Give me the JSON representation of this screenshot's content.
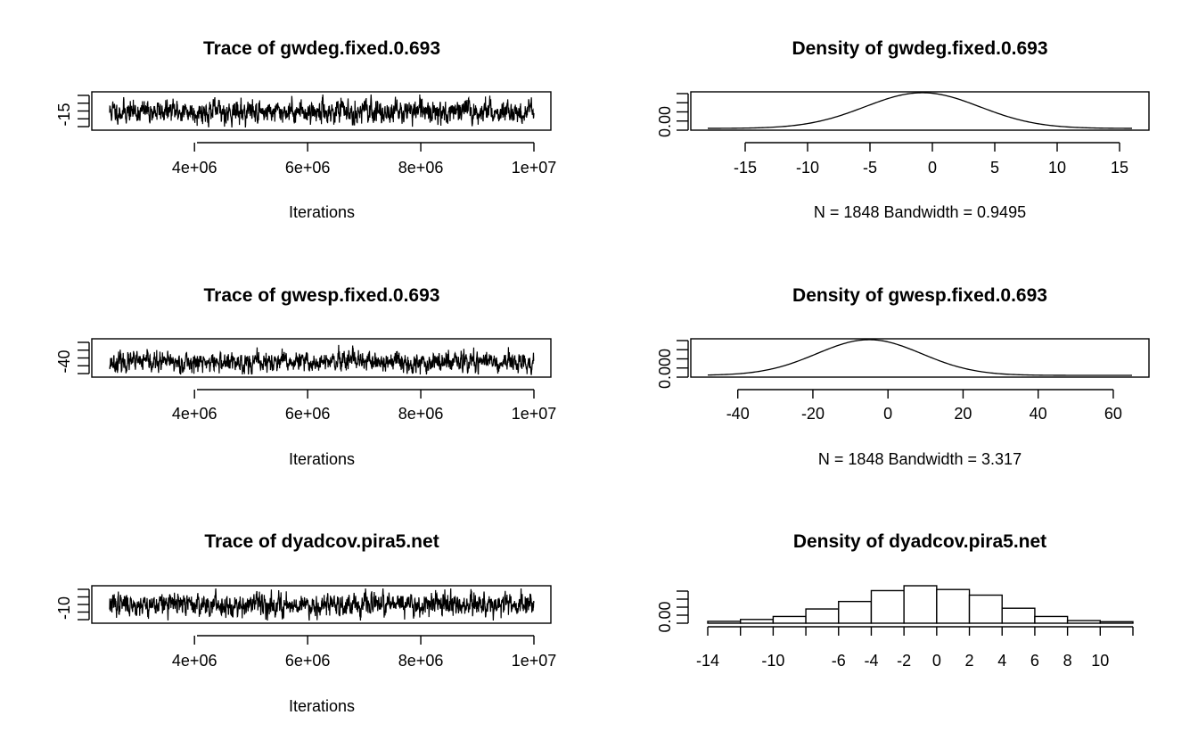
{
  "chart_data": [
    {
      "type": "line",
      "title": "Trace of gwdeg.fixed.0.693",
      "xlabel": "Iterations",
      "ylabel": "",
      "x_ticks": [
        "4e+06",
        "6e+06",
        "8e+06",
        "1e+07"
      ],
      "x_tick_values": [
        4000000,
        6000000,
        8000000,
        10000000
      ],
      "y_ticks": [
        "-15"
      ],
      "xlim": [
        2500000,
        10000000
      ],
      "ylim": [
        -17,
        16
      ],
      "series": [
        {
          "n": 1848,
          "center": -1,
          "spread": 5.5,
          "seed": 11
        }
      ]
    },
    {
      "type": "line",
      "title": "Density of gwdeg.fixed.0.693",
      "xlabel": "N = 1848   Bandwidth = 0.9495",
      "ylabel": "",
      "x_ticks": [
        "-15",
        "-10",
        "-5",
        "0",
        "5",
        "10",
        "15"
      ],
      "x_tick_values": [
        -15,
        -10,
        -5,
        0,
        5,
        10,
        15
      ],
      "y_ticks": [
        "0.00"
      ],
      "xlim": [
        -18,
        16
      ],
      "density": {
        "mean": -0.8,
        "sd": 4.6
      }
    },
    {
      "type": "line",
      "title": "Trace of gwesp.fixed.0.693",
      "xlabel": "Iterations",
      "ylabel": "",
      "x_ticks": [
        "4e+06",
        "6e+06",
        "8e+06",
        "1e+07"
      ],
      "x_tick_values": [
        4000000,
        6000000,
        8000000,
        10000000
      ],
      "y_ticks": [
        "-40"
      ],
      "xlim": [
        2500000,
        10000000
      ],
      "ylim": [
        -42,
        62
      ],
      "series": [
        {
          "n": 1848,
          "center": -4,
          "spread": 15,
          "seed": 23
        }
      ]
    },
    {
      "type": "line",
      "title": "Density of gwesp.fixed.0.693",
      "xlabel": "N = 1848   Bandwidth = 3.317",
      "ylabel": "",
      "x_ticks": [
        "-40",
        "-20",
        "0",
        "20",
        "40",
        "60"
      ],
      "x_tick_values": [
        -40,
        -20,
        0,
        20,
        40,
        60
      ],
      "y_ticks": [
        "0.000"
      ],
      "xlim": [
        -48,
        65
      ],
      "density": {
        "mean": -5,
        "sd": 14
      }
    },
    {
      "type": "line",
      "title": "Trace of dyadcov.pira5.net",
      "xlabel": "Iterations",
      "ylabel": "",
      "x_ticks": [
        "4e+06",
        "6e+06",
        "8e+06",
        "1e+07"
      ],
      "x_tick_values": [
        4000000,
        6000000,
        8000000,
        10000000
      ],
      "y_ticks": [
        "-10"
      ],
      "xlim": [
        2500000,
        10000000
      ],
      "ylim": [
        -13,
        12
      ],
      "series": [
        {
          "n": 1848,
          "center": -0.5,
          "spread": 4.2,
          "seed": 37
        }
      ]
    },
    {
      "type": "bar",
      "title": "Density of dyadcov.pira5.net",
      "xlabel": "",
      "ylabel": "",
      "x_ticks": [
        "-14",
        "-10",
        "-6",
        "-4",
        "-2",
        "0",
        "2",
        "4",
        "6",
        "8",
        "10"
      ],
      "x_tick_values": [
        -14,
        -10,
        -6,
        -4,
        -2,
        0,
        2,
        4,
        6,
        8,
        10
      ],
      "y_ticks": [
        "0.00"
      ],
      "bin_edges": [
        -14,
        -12,
        -10,
        -8,
        -6,
        -4,
        -2,
        0,
        2,
        4,
        6,
        8,
        10,
        12
      ],
      "values": [
        0.005,
        0.01,
        0.018,
        0.038,
        0.058,
        0.087,
        0.1,
        0.09,
        0.075,
        0.04,
        0.018,
        0.007,
        0.004
      ]
    }
  ]
}
